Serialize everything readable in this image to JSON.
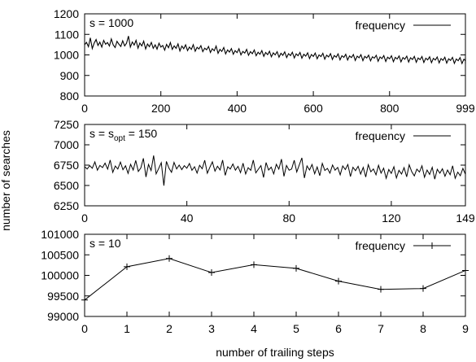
{
  "figure": {
    "ylabel": "number of searches",
    "xlabel": "number of trailing steps"
  },
  "chart_data": [
    {
      "type": "line",
      "panel_label": "s = 1000",
      "legend": [
        "frequency"
      ],
      "legend_position": "top-right",
      "xlim": [
        0,
        999
      ],
      "ylim": [
        800,
        1200
      ],
      "xticks": [
        0,
        200,
        400,
        600,
        800,
        999
      ],
      "yticks": [
        800,
        900,
        1000,
        1100,
        1200
      ],
      "series": [
        {
          "name": "frequency",
          "x_start": 0,
          "x_step": 5,
          "values": [
            1049,
            1061,
            1040,
            1083,
            1031,
            1057,
            1075,
            1046,
            1062,
            1038,
            1071,
            1052,
            1060,
            1043,
            1078,
            1049,
            1036,
            1066,
            1052,
            1041,
            1069,
            1044,
            1057,
            1092,
            1038,
            1063,
            1048,
            1071,
            1033,
            1058,
            1044,
            1067,
            1029,
            1053,
            1040,
            1061,
            1032,
            1049,
            1028,
            1057,
            1038,
            1046,
            1023,
            1051,
            1035,
            1060,
            1027,
            1044,
            1032,
            1054,
            1019,
            1043,
            1030,
            1049,
            1021,
            1038,
            1027,
            1050,
            1018,
            1037,
            1029,
            1045,
            1016,
            1033,
            1025,
            1041,
            1012,
            1030,
            1020,
            1043,
            1008,
            1027,
            1017,
            1036,
            1005,
            1024,
            1014,
            1031,
            1003,
            1021,
            1011,
            1030,
            1000,
            1017,
            1009,
            1027,
            998,
            1016,
            1006,
            1024,
            996,
            1013,
            1003,
            1021,
            993,
            1012,
            1001,
            1018,
            991,
            1010,
            1000,
            1016,
            989,
            1008,
            998,
            1015,
            987,
            1006,
            997,
            1013,
            985,
            1005,
            996,
            1012,
            984,
            1003,
            994,
            1010,
            982,
            1002,
            993,
            1009,
            981,
            1000,
            992,
            1008,
            979,
            999,
            990,
            1006,
            978,
            997,
            989,
            1005,
            976,
            996,
            988,
            1003,
            975,
            995,
            987,
            1002,
            973,
            994,
            986,
            1001,
            972,
            993,
            985,
            999,
            971,
            991,
            984,
            998,
            969,
            990,
            982,
            997,
            968,
            989,
            981,
            996,
            967,
            988,
            980,
            995,
            966,
            987,
            979,
            994,
            965,
            986,
            978,
            993,
            964,
            985,
            977,
            992,
            963,
            984,
            976,
            991,
            962,
            983,
            975,
            990,
            961,
            982,
            974,
            989,
            960,
            981,
            973,
            988,
            959,
            980,
            972,
            987,
            958,
            979,
            971,
            986,
            957,
            978,
            970,
            985
          ]
        }
      ]
    },
    {
      "type": "line",
      "panel_label_main": "s = s",
      "panel_label_sub": "opt",
      "panel_label_tail": " = 150",
      "legend": [
        "frequency"
      ],
      "legend_position": "top-right",
      "xlim": [
        0,
        149
      ],
      "ylim": [
        6250,
        7250
      ],
      "xticks": [
        0,
        40,
        80,
        120,
        149
      ],
      "yticks": [
        6250,
        6500,
        6750,
        7000,
        7250
      ],
      "series": [
        {
          "name": "frequency",
          "x_start": 0,
          "x_step": 1,
          "values": [
            6731,
            6702,
            6744,
            6712,
            6790,
            6688,
            6746,
            6720,
            6775,
            6701,
            6813,
            6661,
            6739,
            6702,
            6788,
            6694,
            6742,
            6648,
            6760,
            6690,
            6808,
            6672,
            6716,
            6834,
            6605,
            6758,
            6684,
            6868,
            6642,
            6711,
            6780,
            6498,
            6796,
            6712,
            6662,
            6784,
            6703,
            6751,
            6695,
            6743,
            6712,
            6770,
            6687,
            6730,
            6652,
            6748,
            6706,
            6810,
            6650,
            6723,
            6790,
            6676,
            6737,
            6691,
            6812,
            6624,
            6730,
            6702,
            6764,
            6688,
            6735,
            6658,
            6774,
            6641,
            6719,
            6686,
            6812,
            6655,
            6701,
            6744,
            6598,
            6782,
            6690,
            6725,
            6642,
            6760,
            6701,
            6824,
            6612,
            6746,
            6688,
            6702,
            6810,
            6666,
            6752,
            6840,
            6592,
            6740,
            6690,
            6758,
            6644,
            6728,
            6620,
            6771,
            6684,
            6710,
            6652,
            6752,
            6688,
            6722,
            6631,
            6740,
            6696,
            6758,
            6610,
            6724,
            6682,
            6736,
            6640,
            6722,
            6604,
            6755,
            6668,
            6703,
            6631,
            6748,
            6652,
            6712,
            6588,
            6697,
            6648,
            6730,
            6592,
            6686,
            6641,
            6719,
            6606,
            6754,
            6670,
            6618,
            6701,
            6665,
            6742,
            6601,
            6690,
            6636,
            6723,
            6578,
            6699,
            6651,
            6705,
            6613,
            6690,
            6632,
            6742,
            6588,
            6664,
            6620,
            6710,
            6638
          ]
        }
      ]
    },
    {
      "type": "line",
      "panel_label": "s = 10",
      "legend": [
        "frequency"
      ],
      "legend_position": "top-right",
      "xlim": [
        0,
        9
      ],
      "ylim": [
        99000,
        101000
      ],
      "xticks": [
        0,
        1,
        2,
        3,
        4,
        5,
        6,
        7,
        8,
        9
      ],
      "yticks": [
        99000,
        99500,
        100000,
        100500,
        101000
      ],
      "series": [
        {
          "name": "frequency",
          "x": [
            0,
            1,
            2,
            3,
            4,
            5,
            6,
            7,
            8,
            9
          ],
          "values": [
            99400,
            100210,
            100410,
            100070,
            100260,
            100170,
            99860,
            99660,
            99680,
            100120
          ]
        }
      ]
    }
  ]
}
